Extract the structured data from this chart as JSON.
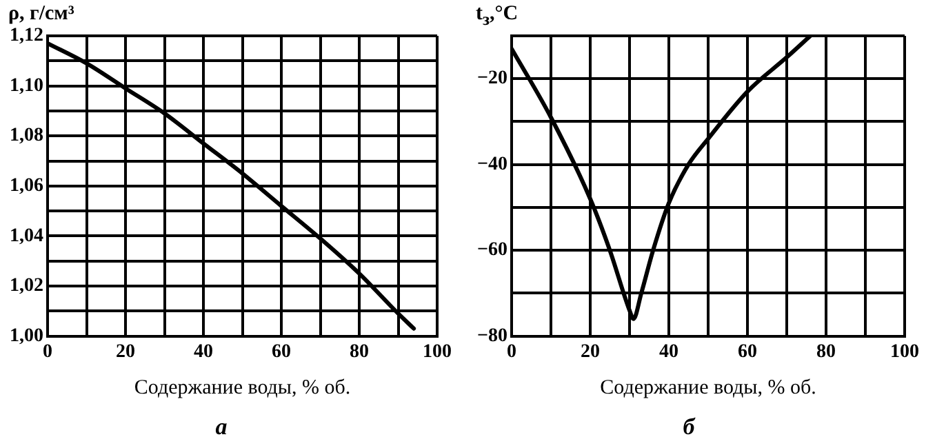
{
  "chart_data": [
    {
      "type": "line",
      "title": "а",
      "xlabel": "Содержание воды, % об.",
      "ylabel": "ρ, г/см³",
      "grid": true,
      "legend": false,
      "marker": "none",
      "line_style": "solid",
      "xlim": [
        0,
        100
      ],
      "ylim": [
        1.0,
        1.12
      ],
      "xticks": [
        0,
        {
          "value": 10,
          "label": null
        },
        20,
        {
          "value": 30,
          "label": null
        },
        40,
        {
          "value": 50,
          "label": null
        },
        60,
        {
          "value": 70,
          "label": null
        },
        80,
        {
          "value": 90,
          "label": null
        },
        100
      ],
      "yticks": [
        {
          "value": 1.0,
          "label": "1,00"
        },
        {
          "value": 1.01,
          "label": null
        },
        {
          "value": 1.02,
          "label": "1,02"
        },
        {
          "value": 1.03,
          "label": null
        },
        {
          "value": 1.04,
          "label": "1,04"
        },
        {
          "value": 1.05,
          "label": null
        },
        {
          "value": 1.06,
          "label": "1,06"
        },
        {
          "value": 1.07,
          "label": null
        },
        {
          "value": 1.08,
          "label": "1,08"
        },
        {
          "value": 1.09,
          "label": null
        },
        {
          "value": 1.1,
          "label": "1,10"
        },
        {
          "value": 1.11,
          "label": null
        },
        {
          "value": 1.12,
          "label": "1,12"
        }
      ],
      "series": [
        {
          "color": "#000000",
          "x": [
            0,
            10,
            20,
            30,
            40,
            50,
            60,
            70,
            80,
            90,
            94
          ],
          "values": [
            1.117,
            1.109,
            1.099,
            1.089,
            1.077,
            1.065,
            1.052,
            1.039,
            1.025,
            1.009,
            1.003
          ]
        }
      ]
    },
    {
      "type": "line",
      "title": "б",
      "xlabel": "Содержание воды, % об.",
      "ylabel": "t$_{з}$,°C",
      "grid": true,
      "legend": false,
      "marker": "none",
      "line_style": "solid",
      "xlim": [
        0,
        100
      ],
      "ylim": [
        -80,
        -10
      ],
      "xticks": [
        0,
        {
          "value": 10,
          "label": null
        },
        20,
        {
          "value": 30,
          "label": null
        },
        40,
        {
          "value": 50,
          "label": null
        },
        60,
        {
          "value": 70,
          "label": null
        },
        80,
        {
          "value": 90,
          "label": null
        },
        100
      ],
      "yticks": [
        -80,
        {
          "value": -70,
          "label": null
        },
        -60,
        {
          "value": -50,
          "label": null
        },
        -40,
        {
          "value": -30,
          "label": null
        },
        -20,
        {
          "value": -10,
          "label": null
        }
      ],
      "series": [
        {
          "color": "#000000",
          "x": [
            0,
            10,
            20,
            25,
            30,
            31,
            33,
            36,
            40,
            45,
            50,
            60,
            70,
            76
          ],
          "values": [
            -13,
            -29,
            -48,
            -60,
            -74,
            -76,
            -70,
            -60,
            -49,
            -40,
            -34,
            -23,
            -15,
            -10
          ]
        }
      ]
    }
  ]
}
